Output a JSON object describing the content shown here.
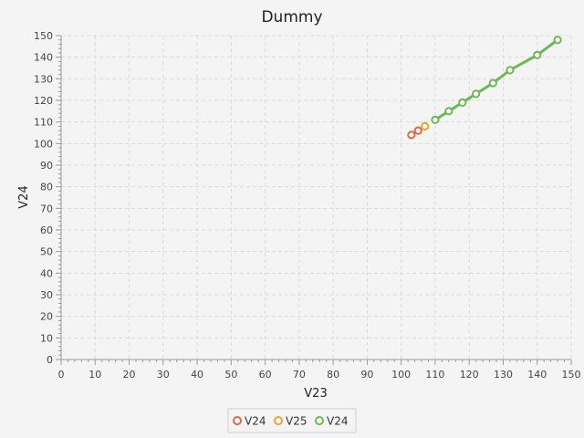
{
  "chart_data": {
    "type": "line",
    "title": "Dummy",
    "xlabel": "V23",
    "ylabel": "V24",
    "xlim": [
      0,
      150
    ],
    "ylim": [
      0,
      150
    ],
    "xticks": [
      0,
      10,
      20,
      30,
      40,
      50,
      60,
      70,
      80,
      90,
      100,
      110,
      120,
      130,
      140,
      150
    ],
    "yticks": [
      0,
      10,
      20,
      30,
      40,
      50,
      60,
      70,
      80,
      90,
      100,
      110,
      120,
      130,
      140,
      150
    ],
    "grid": true,
    "legend_position": "bottom-center",
    "series": [
      {
        "name": "V24",
        "color": "#e8643a",
        "points": [
          [
            103,
            104
          ],
          [
            105,
            106
          ]
        ]
      },
      {
        "name": "V25",
        "color": "#eba32a",
        "points": [
          [
            107,
            108
          ]
        ]
      },
      {
        "name": "V24",
        "color": "#6ab952",
        "line": true,
        "points": [
          [
            110,
            111
          ],
          [
            114,
            115
          ],
          [
            118,
            119
          ],
          [
            122,
            123
          ],
          [
            127,
            128
          ],
          [
            132,
            134
          ],
          [
            140,
            141
          ],
          [
            146,
            148
          ]
        ]
      }
    ]
  }
}
